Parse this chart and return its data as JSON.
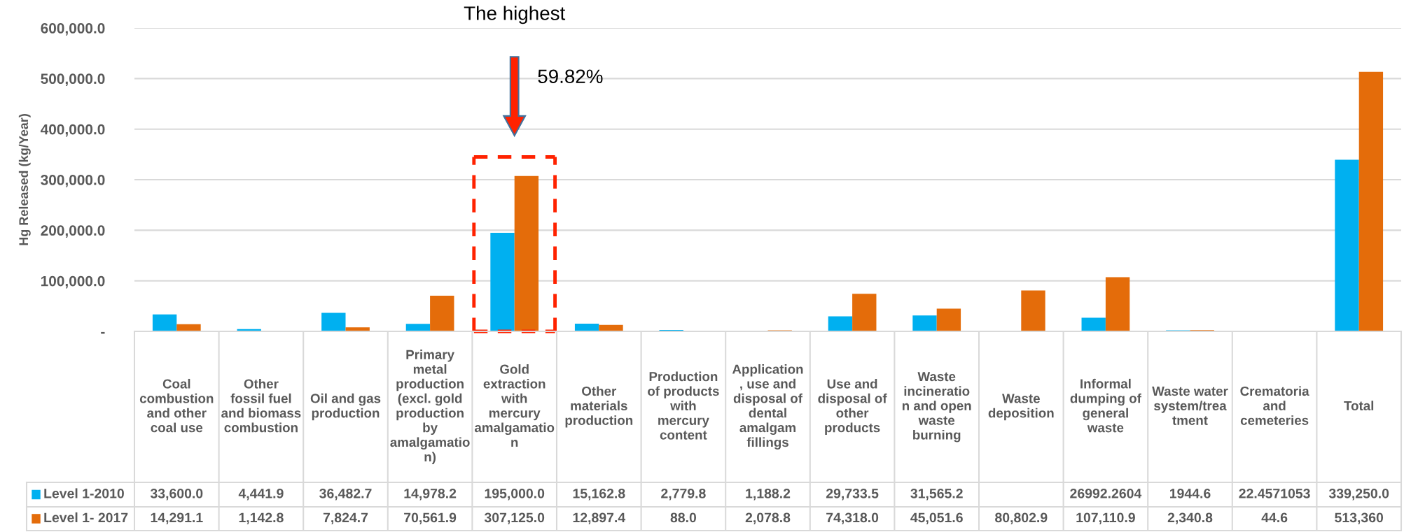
{
  "chart_data": {
    "type": "bar",
    "ylabel": "Hg Released (kg/Year)",
    "categories": [
      "Coal combustion and other coal use",
      "Other fossil fuel and biomass combustion",
      "Oil and gas production",
      "Primary metal production (excl. gold production by amalgamation)",
      "Gold extraction with mercury amalgamation",
      "Other materials production",
      "Production of products with mercury content",
      "Application, use and disposal of dental amalgam fillings",
      "Use and disposal of other products",
      "Waste incineration and open waste burning",
      "Waste deposition",
      "Informal dumping of general waste",
      "Waste water system/treatment",
      "Crematoria and cemeteries",
      "Total"
    ],
    "series": [
      {
        "name": "Level 1-2010",
        "color": "#00b0f0",
        "values": [
          33600.0,
          4441.9,
          36482.7,
          14978.2,
          195000.0,
          15162.8,
          2779.8,
          1188.2,
          29733.5,
          31565.2,
          null,
          26992.2604,
          1944.6,
          22.4571053,
          339250.0
        ],
        "value_labels": [
          "33,600.0",
          "4,441.9",
          "36,482.7",
          "14,978.2",
          "195,000.0",
          "15,162.8",
          "2,779.8",
          "1,188.2",
          "29,733.5",
          "31,565.2",
          null,
          "26992.2604",
          "1944.6",
          "22.4571053",
          "339,250.0"
        ]
      },
      {
        "name": "Level 1- 2017",
        "color": "#e46c0a",
        "values": [
          14291.1,
          1142.8,
          7824.7,
          70561.9,
          307125.0,
          12897.4,
          88.0,
          2078.8,
          74318.0,
          45051.6,
          80802.9,
          107110.9,
          2340.8,
          44.6,
          513360
        ],
        "value_labels": [
          "14,291.1",
          "1,142.8",
          "7,824.7",
          "70,561.9",
          "307,125.0",
          "12,897.4",
          "88.0",
          "2,078.8",
          "74,318.0",
          "45,051.6",
          "80,802.9",
          "107,110.9",
          "2,340.8",
          "44.6",
          "513,360"
        ]
      }
    ],
    "ylim": [
      0,
      600000
    ],
    "yticks": [
      {
        "value": 0,
        "label": "-"
      },
      {
        "value": 100000,
        "label": "100,000.0"
      },
      {
        "value": 200000,
        "label": "200,000.0"
      },
      {
        "value": 300000,
        "label": "300,000.0"
      },
      {
        "value": 400000,
        "label": "400,000.0"
      },
      {
        "value": 500000,
        "label": "500,000.0"
      },
      {
        "value": 600000,
        "label": "600,000.0"
      }
    ],
    "grid": "y",
    "legend": "bottom left",
    "annotations": [
      "The highest",
      "59.82%"
    ]
  }
}
